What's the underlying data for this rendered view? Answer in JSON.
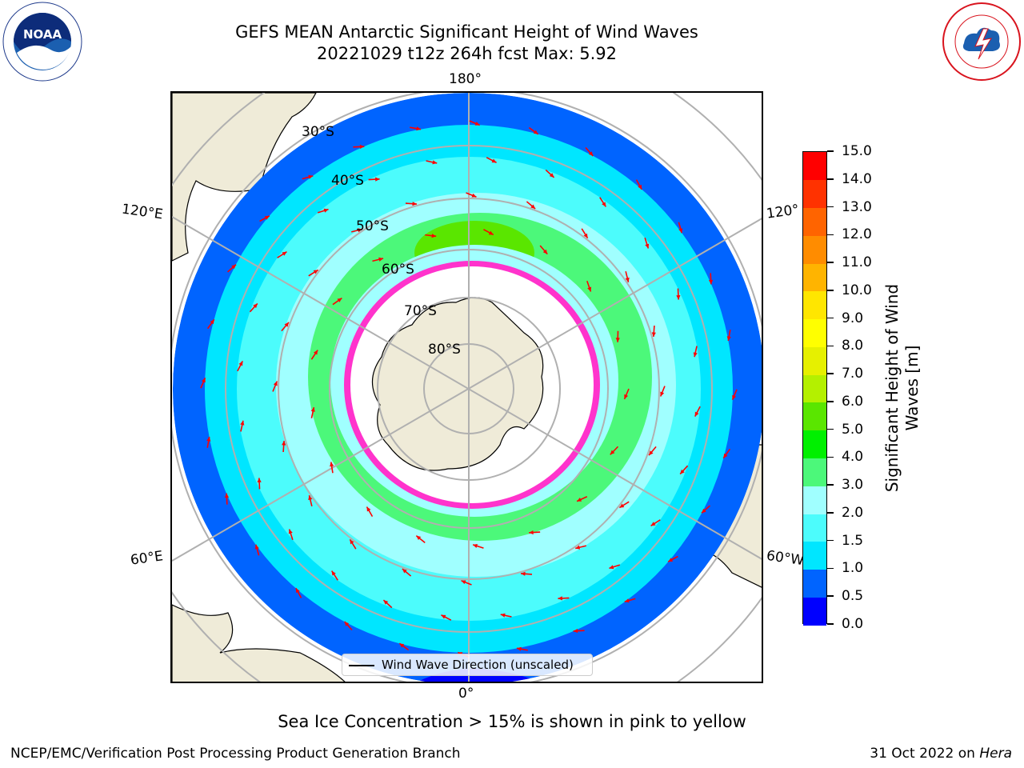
{
  "title": {
    "line1": "GEFS MEAN Antarctic Significant Height of Wind Waves",
    "line2": "20221029 t12z 264h fcst   Max: 5.92"
  },
  "logos": {
    "left": "noaa-logo",
    "right": "nws-logo"
  },
  "map": {
    "projection": "south-polar-stereographic",
    "latitude_labels": [
      "30°S",
      "40°S",
      "50°S",
      "60°S",
      "70°S",
      "80°S"
    ],
    "longitude_labels": {
      "top": "180°",
      "bottom": "0°",
      "upper_left": "120°E",
      "upper_right": "120°",
      "lower_left": "60°E",
      "lower_right": "60°W"
    },
    "colors": {
      "land": "#efebd8",
      "ice_free_no_data": "#ffffff",
      "grid": "#b0b0b0",
      "arrows": "#ff0000",
      "sea_ice": "#ff33cc"
    }
  },
  "legend": {
    "text": "Wind Wave Direction (unscaled)"
  },
  "colorbar": {
    "title": "Significant Height of Wind Waves [m]",
    "title_line1": "Significant Height of Wind",
    "title_line2": "Waves [m]",
    "ticks": [
      "0.0",
      "0.5",
      "1.0",
      "1.5",
      "2.0",
      "3.0",
      "4.0",
      "5.0",
      "6.0",
      "7.0",
      "8.0",
      "9.0",
      "10.0",
      "11.0",
      "12.0",
      "13.0",
      "14.0",
      "15.0"
    ],
    "colors": [
      "#0000ff",
      "#0064ff",
      "#00e6ff",
      "#4cfcfc",
      "#a0ffff",
      "#4cf87a",
      "#00f000",
      "#5ae600",
      "#b4f000",
      "#e6f000",
      "#ffff00",
      "#ffe600",
      "#ffb400",
      "#ff8c00",
      "#ff6400",
      "#ff3200",
      "#ff0000"
    ]
  },
  "caption": "Sea Ice Concentration > 15% is shown in pink to yellow",
  "footer": {
    "left": "NCEP/EMC/Verification Post Processing Product Generation Branch",
    "right_prefix": "31 Oct 2022 on ",
    "right_host": "Hera"
  }
}
